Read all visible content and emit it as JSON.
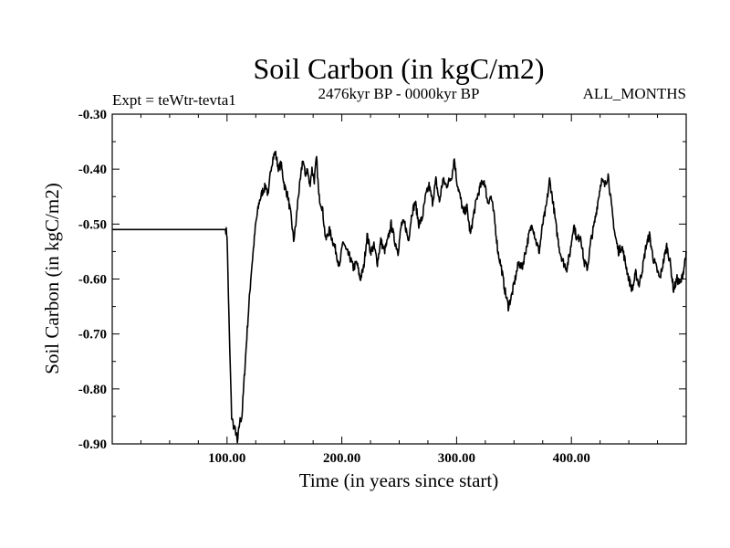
{
  "chart_data": {
    "type": "line",
    "title": "Soil Carbon (in kgC/m2)",
    "subtitle": "2476kyr BP - 0000kyr BP",
    "experiment_label": "Expt = teWtr-tevta1",
    "months_label": "ALL_MONTHS",
    "xlabel": "Time (in years since start)",
    "ylabel": "Soil Carbon (in kgC/m2)",
    "xlim": [
      0,
      500
    ],
    "ylim": [
      -0.9,
      -0.3
    ],
    "x_ticks": [
      {
        "value": 100,
        "label": "100.00"
      },
      {
        "value": 200,
        "label": "200.00"
      },
      {
        "value": 300,
        "label": "300.00"
      },
      {
        "value": 400,
        "label": "400.00"
      }
    ],
    "y_ticks": [
      {
        "value": -0.3,
        "label": "-0.30"
      },
      {
        "value": -0.4,
        "label": "-0.40"
      },
      {
        "value": -0.5,
        "label": "-0.50"
      },
      {
        "value": -0.6,
        "label": "-0.60"
      },
      {
        "value": -0.7,
        "label": "-0.70"
      },
      {
        "value": -0.8,
        "label": "-0.80"
      },
      {
        "value": -0.9,
        "label": "-0.90"
      }
    ],
    "grid": false,
    "series": [
      {
        "name": "Soil Carbon",
        "color": "#000000",
        "x": [
          0,
          99,
          100,
          102,
          104,
          106,
          108,
          109,
          111,
          113,
          115,
          118,
          121,
          125,
          128,
          131,
          134,
          136,
          138,
          140,
          142,
          145,
          147,
          150,
          153,
          156,
          158,
          160,
          162,
          164,
          166,
          168,
          170,
          172,
          174,
          176,
          178,
          180,
          183,
          186,
          189,
          192,
          195,
          198,
          201,
          204,
          207,
          210,
          213,
          216,
          219,
          222,
          225,
          228,
          231,
          234,
          237,
          240,
          243,
          246,
          249,
          252,
          255,
          258,
          261,
          264,
          267,
          270,
          273,
          276,
          279,
          282,
          285,
          288,
          291,
          294,
          296,
          298,
          300,
          303,
          306,
          309,
          312,
          315,
          318,
          321,
          324,
          327,
          330,
          333,
          336,
          339,
          342,
          345,
          348,
          351,
          354,
          357,
          360,
          363,
          366,
          369,
          372,
          375,
          378,
          381,
          384,
          387,
          390,
          393,
          396,
          399,
          402,
          405,
          408,
          411,
          414,
          417,
          420,
          423,
          426,
          429,
          432,
          435,
          438,
          441,
          444,
          447,
          450,
          453,
          456,
          459,
          462,
          465,
          468,
          471,
          474,
          477,
          480,
          483,
          486,
          489,
          492,
          495,
          498,
          500
        ],
        "values": [
          -0.51,
          -0.51,
          -0.52,
          -0.7,
          -0.85,
          -0.87,
          -0.88,
          -0.9,
          -0.86,
          -0.85,
          -0.78,
          -0.68,
          -0.59,
          -0.5,
          -0.46,
          -0.44,
          -0.43,
          -0.45,
          -0.4,
          -0.38,
          -0.37,
          -0.4,
          -0.39,
          -0.43,
          -0.45,
          -0.49,
          -0.53,
          -0.5,
          -0.45,
          -0.42,
          -0.38,
          -0.41,
          -0.4,
          -0.43,
          -0.4,
          -0.42,
          -0.38,
          -0.45,
          -0.47,
          -0.53,
          -0.51,
          -0.53,
          -0.55,
          -0.58,
          -0.53,
          -0.55,
          -0.56,
          -0.58,
          -0.57,
          -0.6,
          -0.58,
          -0.52,
          -0.55,
          -0.54,
          -0.57,
          -0.53,
          -0.55,
          -0.53,
          -0.5,
          -0.53,
          -0.55,
          -0.5,
          -0.5,
          -0.53,
          -0.48,
          -0.46,
          -0.5,
          -0.49,
          -0.45,
          -0.43,
          -0.46,
          -0.42,
          -0.46,
          -0.42,
          -0.43,
          -0.42,
          -0.41,
          -0.38,
          -0.42,
          -0.45,
          -0.48,
          -0.47,
          -0.52,
          -0.48,
          -0.45,
          -0.43,
          -0.42,
          -0.46,
          -0.45,
          -0.49,
          -0.55,
          -0.58,
          -0.62,
          -0.65,
          -0.63,
          -0.6,
          -0.57,
          -0.58,
          -0.55,
          -0.52,
          -0.5,
          -0.53,
          -0.55,
          -0.5,
          -0.47,
          -0.42,
          -0.46,
          -0.51,
          -0.55,
          -0.57,
          -0.58,
          -0.55,
          -0.5,
          -0.53,
          -0.52,
          -0.57,
          -0.58,
          -0.53,
          -0.5,
          -0.46,
          -0.42,
          -0.43,
          -0.41,
          -0.47,
          -0.52,
          -0.55,
          -0.54,
          -0.57,
          -0.6,
          -0.62,
          -0.59,
          -0.61,
          -0.58,
          -0.54,
          -0.52,
          -0.56,
          -0.58,
          -0.6,
          -0.57,
          -0.54,
          -0.57,
          -0.62,
          -0.6,
          -0.61,
          -0.58,
          -0.55
        ]
      }
    ]
  }
}
